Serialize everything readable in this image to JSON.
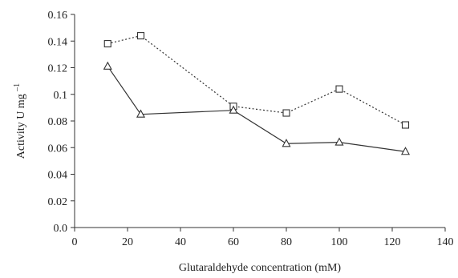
{
  "chart_data": {
    "type": "line",
    "title": "",
    "xlabel": "Glutaraldehyde concentration (mM)",
    "ylabel_main": "Activity U mg",
    "ylabel_superscript": "–1",
    "xlim": [
      0,
      140
    ],
    "ylim": [
      0,
      0.16
    ],
    "x_ticks": [
      "0",
      "20",
      "40",
      "60",
      "80",
      "100",
      "120",
      "140"
    ],
    "y_ticks": [
      "0.0",
      "0.02",
      "0.04",
      "0.06",
      "0.08",
      "0.1",
      "0.12",
      "0.14",
      "0.16"
    ],
    "grid": false,
    "legend": "none",
    "series": [
      {
        "marker": "square",
        "line_style": "dotted",
        "color": "#333333",
        "x": [
          12.5,
          25,
          60,
          80,
          100,
          125
        ],
        "y": [
          0.138,
          0.144,
          0.091,
          0.086,
          0.104,
          0.077
        ]
      },
      {
        "marker": "triangle",
        "line_style": "solid",
        "color": "#333333",
        "x": [
          12.5,
          25,
          60,
          80,
          100,
          125
        ],
        "y": [
          0.121,
          0.085,
          0.088,
          0.063,
          0.064,
          0.057
        ]
      }
    ]
  }
}
